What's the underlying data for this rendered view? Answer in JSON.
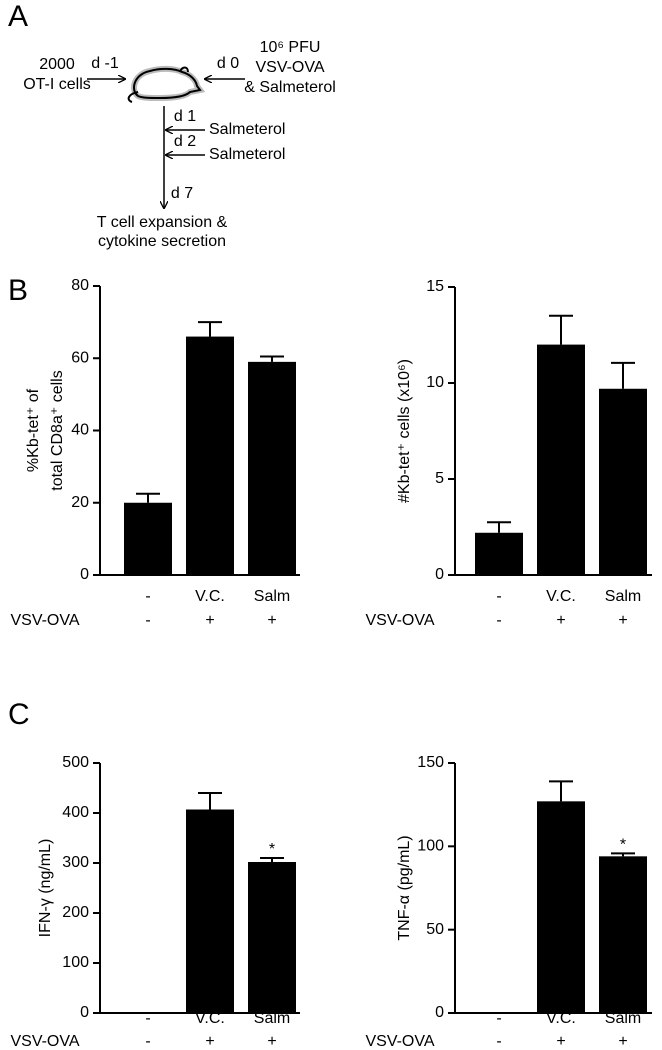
{
  "panel_labels": [
    "A",
    "B",
    "C"
  ],
  "diagram": {
    "cells": [
      "2000",
      "OT-I cells"
    ],
    "day_minus1": "d -1",
    "day0": "d 0",
    "infection": [
      "10⁶ PFU",
      "VSV-OVA",
      "& Salmeterol"
    ],
    "day1": "d 1",
    "treatment1": "Salmeterol",
    "day2": "d 2",
    "treatment2": "Salmeterol",
    "day7": "d 7",
    "readout": [
      "T cell expansion &",
      "cytokine secretion"
    ]
  },
  "chart_data": [
    {
      "type": "bar",
      "ylabel": [
        "%Kb-tet⁺ of",
        "total CD8a⁺ cells"
      ],
      "categories": [
        "-",
        "V.C.",
        "Salm"
      ],
      "values": [
        20,
        66,
        59
      ],
      "errors": [
        2.5,
        4,
        1.5
      ],
      "color": "#000000",
      "ylim": [
        0,
        80
      ],
      "yticks": [
        0,
        20,
        40,
        60,
        80
      ],
      "row_label": "VSV-OVA",
      "row_values": [
        "-",
        "+",
        "+"
      ]
    },
    {
      "type": "bar",
      "ylabel": "#Kb-tet⁺ cells (x10⁶)",
      "categories": [
        "-",
        "V.C.",
        "Salm"
      ],
      "values": [
        2.2,
        12,
        9.7
      ],
      "errors": [
        0.55,
        1.5,
        1.35
      ],
      "color": "#000000",
      "ylim": [
        0,
        15
      ],
      "yticks": [
        0,
        5,
        10,
        15
      ],
      "row_label": "VSV-OVA",
      "row_values": [
        "-",
        "+",
        "+"
      ]
    },
    {
      "type": "bar",
      "ylabel": "IFN-γ (ng/mL)",
      "categories": [
        "-",
        "V.C.",
        "Salm"
      ],
      "values": [
        0,
        407,
        302
      ],
      "errors": [
        0,
        33,
        8
      ],
      "annotations": [
        null,
        null,
        "*"
      ],
      "color": "#000000",
      "ylim": [
        0,
        500
      ],
      "yticks": [
        0,
        100,
        200,
        300,
        400,
        500
      ],
      "row_label": "VSV-OVA",
      "row_values": [
        "-",
        "+",
        "+"
      ]
    },
    {
      "type": "bar",
      "ylabel": "TNF-α (pg/mL)",
      "categories": [
        "-",
        "V.C.",
        "Salm"
      ],
      "values": [
        0,
        127,
        94
      ],
      "errors": [
        0,
        12,
        1.8
      ],
      "annotations": [
        null,
        null,
        "*"
      ],
      "color": "#000000",
      "ylim": [
        0,
        150
      ],
      "yticks": [
        0,
        50,
        100,
        150
      ],
      "row_label": "VSV-OVA",
      "row_values": [
        "-",
        "+",
        "+"
      ]
    }
  ]
}
